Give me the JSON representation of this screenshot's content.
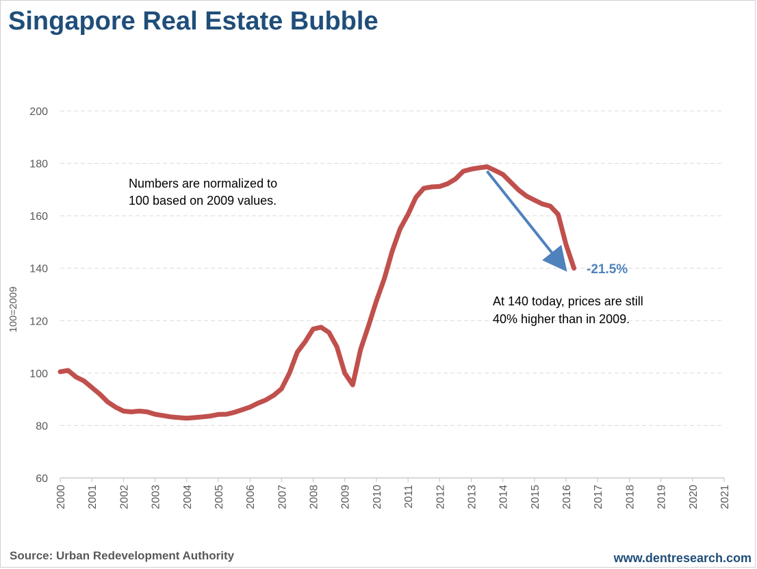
{
  "title": "Singapore Real Estate Bubble",
  "source": "Source: Urban Redevelopment Authority",
  "website": "www.dentresearch.com",
  "colors": {
    "title": "#1f4e79",
    "line": "#c0504d",
    "arrow": "#4f81bd",
    "grid": "#d9d9d9",
    "axis_text": "#595959"
  },
  "chart_data": {
    "type": "line",
    "ylabel": "100=2009",
    "xlabel": "",
    "ylim": [
      60,
      200
    ],
    "xlim": [
      2000,
      2021
    ],
    "yticks": [
      60,
      80,
      100,
      120,
      140,
      160,
      180,
      200
    ],
    "xticks": [
      2000,
      2001,
      2002,
      2003,
      2004,
      2005,
      2006,
      2007,
      2008,
      2009,
      2010,
      2011,
      2012,
      2013,
      2014,
      2015,
      2016,
      2017,
      2018,
      2019,
      2020,
      2021
    ],
    "grid": "horizontal dashed",
    "series": [
      {
        "values": [
          [
            2000.0,
            100.5
          ],
          [
            2000.25,
            101
          ],
          [
            2000.5,
            98.5
          ],
          [
            2000.75,
            97
          ],
          [
            2001.0,
            94.5
          ],
          [
            2001.25,
            92
          ],
          [
            2001.5,
            89
          ],
          [
            2001.75,
            87
          ],
          [
            2002.0,
            85.5
          ],
          [
            2002.25,
            85.2
          ],
          [
            2002.5,
            85.5
          ],
          [
            2002.75,
            85.2
          ],
          [
            2003.0,
            84.3
          ],
          [
            2003.25,
            83.8
          ],
          [
            2003.5,
            83.3
          ],
          [
            2003.75,
            83
          ],
          [
            2004.0,
            82.8
          ],
          [
            2004.25,
            83
          ],
          [
            2004.5,
            83.3
          ],
          [
            2004.75,
            83.6
          ],
          [
            2005.0,
            84.2
          ],
          [
            2005.25,
            84.3
          ],
          [
            2005.5,
            85
          ],
          [
            2005.75,
            86
          ],
          [
            2006.0,
            87
          ],
          [
            2006.25,
            88.5
          ],
          [
            2006.5,
            89.7
          ],
          [
            2006.75,
            91.5
          ],
          [
            2007.0,
            94
          ],
          [
            2007.25,
            100
          ],
          [
            2007.5,
            108
          ],
          [
            2007.75,
            112
          ],
          [
            2008.0,
            116.8
          ],
          [
            2008.25,
            117.5
          ],
          [
            2008.5,
            115.5
          ],
          [
            2008.75,
            110
          ],
          [
            2009.0,
            100
          ],
          [
            2009.25,
            95.5
          ],
          [
            2009.5,
            109
          ],
          [
            2009.75,
            118
          ],
          [
            2010.0,
            127.5
          ],
          [
            2010.25,
            136
          ],
          [
            2010.5,
            146.5
          ],
          [
            2010.75,
            155
          ],
          [
            2011.0,
            160.5
          ],
          [
            2011.25,
            167
          ],
          [
            2011.5,
            170.5
          ],
          [
            2011.75,
            171
          ],
          [
            2012.0,
            171.2
          ],
          [
            2012.25,
            172.2
          ],
          [
            2012.5,
            174
          ],
          [
            2012.75,
            177
          ],
          [
            2013.0,
            177.8
          ],
          [
            2013.25,
            178.3
          ],
          [
            2013.5,
            178.7
          ],
          [
            2013.75,
            177.3
          ],
          [
            2014.0,
            175.8
          ],
          [
            2014.25,
            172.8
          ],
          [
            2014.5,
            169.8
          ],
          [
            2014.75,
            167.5
          ],
          [
            2015.0,
            166
          ],
          [
            2015.25,
            164.5
          ],
          [
            2015.5,
            163.7
          ],
          [
            2015.75,
            160.5
          ],
          [
            2016.0,
            149
          ],
          [
            2016.25,
            140
          ]
        ]
      }
    ],
    "annotations": [
      {
        "id": "note",
        "lines": [
          "Numbers are normalized to",
          "100 based on 2009 values."
        ]
      },
      {
        "id": "today",
        "lines": [
          "At 140 today, prices are still",
          "40% higher than in 2009."
        ]
      },
      {
        "id": "pct",
        "text": "-21.5%"
      }
    ],
    "arrow": {
      "from": [
        2013.5,
        177
      ],
      "to": [
        2016.0,
        139
      ]
    }
  }
}
